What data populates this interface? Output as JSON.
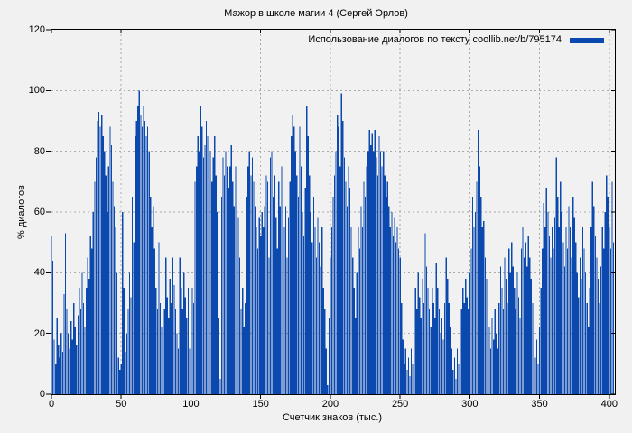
{
  "title": "Мажор в школе магии 4 (Сергей Орлов)",
  "legend": {
    "label": "Использование диалогов по тексту coollib.net/b/795174"
  },
  "colors": {
    "bar": "#0b49ae",
    "background": "#f1f1f1",
    "grid": "#a9a9a9",
    "frame": "#000000"
  },
  "chart_data": {
    "type": "bar",
    "title": "Мажор в школе магии 4 (Сергей Орлов)",
    "xlabel": "Счетчик знаков (тыс.)",
    "ylabel": "% диалогов",
    "xlim": [
      0,
      404
    ],
    "ylim": [
      0,
      120
    ],
    "xticks": [
      0,
      50,
      100,
      150,
      200,
      250,
      300,
      350,
      400
    ],
    "yticks": [
      0,
      20,
      40,
      60,
      80,
      100,
      120
    ],
    "grid": true,
    "legend_position": "top-right",
    "series": [
      {
        "name": "Использование диалогов по тексту coollib.net/b/795174",
        "x_start": 0,
        "x_step": 1,
        "values": [
          52,
          44,
          18,
          10,
          25,
          16,
          12,
          20,
          14,
          33,
          53,
          28,
          20,
          15,
          24,
          18,
          30,
          22,
          16,
          26,
          35,
          28,
          40,
          30,
          22,
          35,
          45,
          38,
          52,
          48,
          60,
          70,
          78,
          90,
          93,
          88,
          92,
          85,
          80,
          72,
          60,
          75,
          88,
          82,
          70,
          62,
          55,
          40,
          12,
          8,
          10,
          60,
          35,
          14,
          20,
          28,
          40,
          32,
          65,
          50,
          85,
          90,
          95,
          100,
          92,
          88,
          95,
          90,
          85,
          88,
          80,
          65,
          55,
          62,
          48,
          35,
          28,
          50,
          30,
          22,
          35,
          28,
          45,
          32,
          25,
          38,
          30,
          45,
          36,
          28,
          20,
          15,
          45,
          35,
          28,
          40,
          32,
          25,
          35,
          15,
          28,
          35,
          30,
          70,
          75,
          85,
          80,
          95,
          88,
          78,
          82,
          90,
          85,
          75,
          80,
          70,
          78,
          85,
          72,
          60,
          25,
          5,
          65,
          78,
          72,
          80,
          75,
          68,
          75,
          82,
          70,
          62,
          75,
          68,
          58,
          45,
          28,
          35,
          22,
          30,
          65,
          75,
          80,
          72,
          78,
          70,
          62,
          55,
          48,
          58,
          52,
          60,
          55,
          62,
          72,
          70,
          45,
          78,
          80,
          65,
          72,
          58,
          48,
          70,
          62,
          75,
          68,
          55,
          62,
          45,
          58,
          70,
          85,
          92,
          88,
          80,
          72,
          65,
          88,
          75,
          60,
          52,
          68,
          95,
          85,
          72,
          60,
          50,
          65,
          55,
          45,
          58,
          50,
          42,
          55,
          35,
          28,
          15,
          3,
          25,
          45,
          55,
          65,
          72,
          80,
          92,
          88,
          75,
          99,
          90,
          78,
          70,
          62,
          75,
          68,
          55,
          45,
          35,
          25,
          40,
          55,
          48,
          62,
          55,
          70,
          65,
          75,
          80,
          87,
          82,
          86,
          80,
          87,
          78,
          72,
          85,
          80,
          75,
          80,
          72,
          65,
          70,
          62,
          55,
          60,
          52,
          58,
          50,
          55,
          48,
          45,
          30,
          18,
          10,
          15,
          8,
          12,
          6,
          15,
          10,
          20,
          35,
          28,
          40,
          32,
          25,
          38,
          30,
          53,
          42,
          35,
          28,
          22,
          35,
          30,
          25,
          43,
          35,
          28,
          20,
          25,
          18,
          30,
          45,
          38,
          30,
          22,
          15,
          8,
          12,
          5,
          15,
          10,
          20,
          28,
          35,
          30,
          38,
          32,
          28,
          40,
          48,
          65,
          55,
          60,
          70,
          87,
          75,
          65,
          55,
          57,
          45,
          38,
          30,
          22,
          15,
          25,
          18,
          28,
          20,
          15,
          30,
          42,
          35,
          28,
          45,
          38,
          30,
          48,
          40,
          50,
          42,
          35,
          28,
          40,
          32,
          25,
          48,
          55,
          45,
          50,
          42,
          52,
          45,
          38,
          30,
          20,
          12,
          18,
          10,
          22,
          35,
          48,
          63,
          55,
          68,
          60,
          52,
          45,
          55,
          48,
          58,
          78,
          65,
          55,
          70,
          60,
          50,
          42,
          55,
          48,
          62,
          55,
          45,
          65,
          58,
          50,
          40,
          32,
          45,
          38,
          55,
          48,
          40,
          30,
          22,
          35,
          55,
          70,
          62,
          52,
          45,
          38,
          30,
          42,
          55,
          48,
          60,
          72,
          65,
          55,
          48,
          70,
          50
        ]
      }
    ]
  }
}
